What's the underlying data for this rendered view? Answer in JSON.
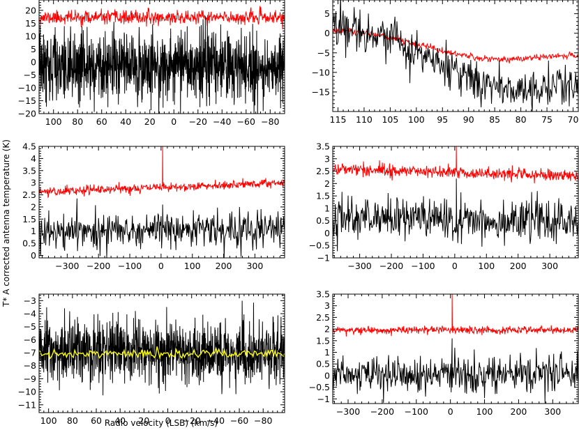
{
  "figure": {
    "ylabel": "T* A corrected antenna temperature (K)",
    "xlabel": "Radio velocity (LSB) (km/s)"
  },
  "chart_data": [
    {
      "type": "line",
      "panel": "top-left",
      "x_reversed": true,
      "xlim": [
        112,
        -92
      ],
      "ylim": [
        -20,
        24
      ],
      "xticks": [
        100,
        80,
        60,
        40,
        20,
        0,
        -20,
        -40,
        -60,
        -80
      ],
      "xtick_labels": [
        "100",
        "80",
        "60",
        "40",
        "20",
        "0",
        "−20",
        "−40",
        "−60",
        "−80"
      ],
      "yticks": [
        -20,
        -15,
        -10,
        -5,
        0,
        5,
        10,
        15,
        20
      ],
      "series": [
        {
          "color": "#ff0000",
          "n": 600,
          "shape": "flat",
          "params": [
            17.2
          ],
          "noise": 1.3,
          "seed": 11
        },
        {
          "color": "#000000",
          "n": 1100,
          "shape": "flat",
          "params": [
            -1.5
          ],
          "noise": 6.5,
          "seed": 12
        }
      ]
    },
    {
      "type": "line",
      "panel": "top-right",
      "x_reversed": true,
      "xlim": [
        116,
        69
      ],
      "ylim": [
        -20,
        8.5
      ],
      "xticks": [
        115,
        110,
        105,
        100,
        95,
        90,
        85,
        80,
        75,
        70
      ],
      "xtick_labels": [
        "115",
        "110",
        "105",
        "100",
        "95",
        "90",
        "85",
        "80",
        "75",
        "70"
      ],
      "yticks": [
        -15,
        -10,
        -5,
        0,
        5
      ],
      "series": [
        {
          "color": "#ff0000",
          "n": 450,
          "shape": "wave",
          "params": [
            0.7,
            -6.7,
            0.71,
            116,
            69
          ],
          "noise": 0.45,
          "seed": 21
        },
        {
          "color": "#000000",
          "n": 380,
          "shape": "wave",
          "params": [
            2.0,
            -14.2,
            0.75,
            116,
            69
          ],
          "noise": 2.6,
          "seed": 22
        }
      ]
    },
    {
      "type": "line",
      "panel": "middle-left",
      "x_reversed": false,
      "xlim": [
        -390,
        395
      ],
      "ylim": [
        -0.1,
        4.5
      ],
      "xticks": [
        -300,
        -200,
        -100,
        0,
        100,
        200,
        300
      ],
      "xtick_labels": [
        "−300",
        "−200",
        "−100",
        "0",
        "100",
        "200",
        "300"
      ],
      "yticks": [
        0,
        0.5,
        1,
        1.5,
        2,
        2.5,
        3,
        3.5,
        4,
        4.5
      ],
      "series": [
        {
          "color": "#ff0000",
          "n": 600,
          "shape": "linear",
          "params": [
            2.62,
            3.0
          ],
          "noise": 0.09,
          "seed": 31,
          "spike_x": 5,
          "spike_to": 4.5
        },
        {
          "color": "#000000",
          "n": 480,
          "shape": "linear",
          "params": [
            1.0,
            1.1
          ],
          "noise": 0.36,
          "seed": 32,
          "spike_x": 5,
          "spike_to": 2.1
        }
      ]
    },
    {
      "type": "line",
      "panel": "middle-right",
      "x_reversed": false,
      "xlim": [
        -385,
        390
      ],
      "ylim": [
        -1,
        3.5
      ],
      "xticks": [
        -300,
        -200,
        -100,
        0,
        100,
        200,
        300
      ],
      "xtick_labels": [
        "−300",
        "−200",
        "−100",
        "0",
        "100",
        "200",
        "300"
      ],
      "yticks": [
        -1,
        -0.5,
        0,
        0.5,
        1,
        1.5,
        2,
        2.5,
        3,
        3.5
      ],
      "series": [
        {
          "color": "#ff0000",
          "n": 600,
          "shape": "linear",
          "params": [
            2.6,
            2.3
          ],
          "noise": 0.12,
          "seed": 41,
          "spike_x": 5,
          "spike_to": 3.5
        },
        {
          "color": "#000000",
          "n": 480,
          "shape": "linear",
          "params": [
            0.65,
            0.45
          ],
          "noise": 0.42,
          "seed": 42,
          "spike_x": 5,
          "spike_to": 2.2
        }
      ]
    },
    {
      "type": "line",
      "panel": "bottom-left",
      "x_reversed": true,
      "xlim": [
        108,
        -98
      ],
      "ylim": [
        -11.6,
        -2.5
      ],
      "xticks": [
        100,
        80,
        60,
        40,
        20,
        0,
        -20,
        -40,
        -60,
        -80
      ],
      "xtick_labels": [
        "100",
        "80",
        "60",
        "40",
        "20",
        "0",
        "−20",
        "−40",
        "−60",
        "−80"
      ],
      "yticks": [
        -11,
        -10,
        -9,
        -8,
        -7,
        -6,
        -5,
        -4,
        -3
      ],
      "series": [
        {
          "color": "#000000",
          "n": 1100,
          "shape": "flat",
          "params": [
            -7.0
          ],
          "noise": 1.2,
          "seed": 51
        },
        {
          "color": "#ffff00",
          "n": 180,
          "shape": "flat",
          "params": [
            -7.05
          ],
          "noise": 0.16,
          "seed": 52
        }
      ]
    },
    {
      "type": "line",
      "panel": "bottom-right",
      "x_reversed": false,
      "xlim": [
        -345,
        375
      ],
      "ylim": [
        -1.2,
        3.5
      ],
      "xticks": [
        -300,
        -200,
        -100,
        0,
        100,
        200,
        300
      ],
      "xtick_labels": [
        "−300",
        "−200",
        "−100",
        "0",
        "100",
        "200",
        "300"
      ],
      "yticks": [
        -1,
        -0.5,
        0,
        0.5,
        1,
        1.5,
        2,
        2.5,
        3,
        3.5
      ],
      "series": [
        {
          "color": "#ff0000",
          "n": 600,
          "shape": "flat",
          "params": [
            1.95
          ],
          "noise": 0.08,
          "seed": 61,
          "spike_x": 5,
          "spike_to": 3.5
        },
        {
          "color": "#000000",
          "n": 480,
          "shape": "flat",
          "params": [
            0.05
          ],
          "noise": 0.4,
          "seed": 62,
          "spike_x": 5,
          "spike_to": 1.6
        }
      ]
    }
  ]
}
